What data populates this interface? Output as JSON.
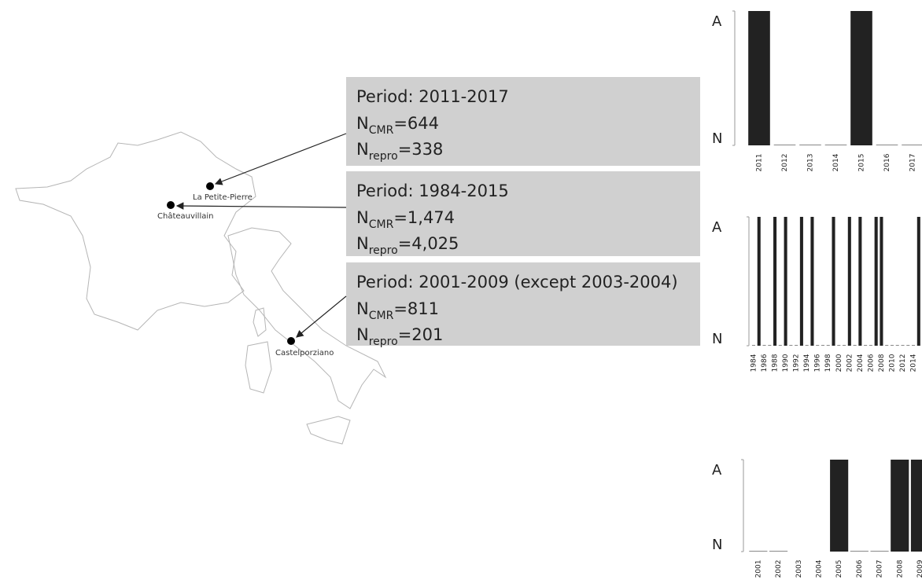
{
  "map_labels": [
    "La Petite-Pierre",
    "Châteauvillain",
    "Castelporziano"
  ],
  "info_boxes": [
    {
      "period": "Period: 2011-2017",
      "n_cmr": {
        "main": "N",
        "sub": "CMR",
        "text": "=644"
      },
      "n_repro": {
        "main": "N",
        "sub": "repro",
        "text": "=338"
      }
    },
    {
      "period": "Period: 1984-2015",
      "n_cmr": {
        "main": "N",
        "sub": "CMR",
        "text": "=1,474"
      },
      "n_repro": {
        "main": "N",
        "sub": "repro",
        "text": "=4,025"
      }
    },
    {
      "period": "Period: 2001-2009 (except 2003-2004)",
      "n_cmr": {
        "main": "N",
        "sub": "CMR",
        "text": "=811"
      },
      "n_repro": {
        "main": "N",
        "sub": "repro",
        "text": "=201"
      }
    }
  ],
  "chart_data": [
    {
      "type": "bar",
      "color": "#222222",
      "categories": [
        "2011",
        "2012",
        "2013",
        "2014",
        "2015",
        "2016",
        "2017"
      ],
      "values": [
        1,
        0,
        0,
        0,
        1,
        0,
        0
      ],
      "ylim": [
        0,
        1
      ],
      "yticks": [
        {
          "value": 0,
          "label": "N"
        },
        {
          "value": 1,
          "label": "A"
        }
      ]
    },
    {
      "type": "bar",
      "color": "#222222",
      "categories": [
        "1984",
        null,
        "1986",
        null,
        "1988",
        null,
        "1990",
        null,
        "1992",
        null,
        "1994",
        null,
        "1996",
        null,
        "1998",
        null,
        "2000",
        null,
        "2002",
        null,
        "2004",
        null,
        "2006",
        null,
        "2008",
        null,
        "2010",
        null,
        "2012",
        null,
        "2014",
        null
      ],
      "values": [
        0,
        1,
        0,
        0,
        1,
        0,
        1,
        0,
        0,
        1,
        0,
        1,
        0,
        0,
        0,
        1,
        0,
        0,
        1,
        0,
        1,
        0,
        0,
        1,
        1,
        0,
        0,
        0,
        0,
        0,
        0,
        1
      ],
      "ylim": [
        0,
        1
      ],
      "yticks": [
        {
          "value": 0,
          "label": "N"
        },
        {
          "value": 1,
          "label": "A"
        }
      ]
    },
    {
      "type": "bar",
      "color": "#222222",
      "categories": [
        "2001",
        "2002",
        "2003",
        "2004",
        "2005",
        "2006",
        "2007",
        "2008",
        "2009"
      ],
      "values": [
        0,
        0,
        null,
        null,
        1,
        0,
        0,
        1,
        1
      ],
      "ylim": [
        0,
        1
      ],
      "yticks": [
        {
          "value": 0,
          "label": "N"
        },
        {
          "value": 1,
          "label": "A"
        }
      ]
    }
  ]
}
